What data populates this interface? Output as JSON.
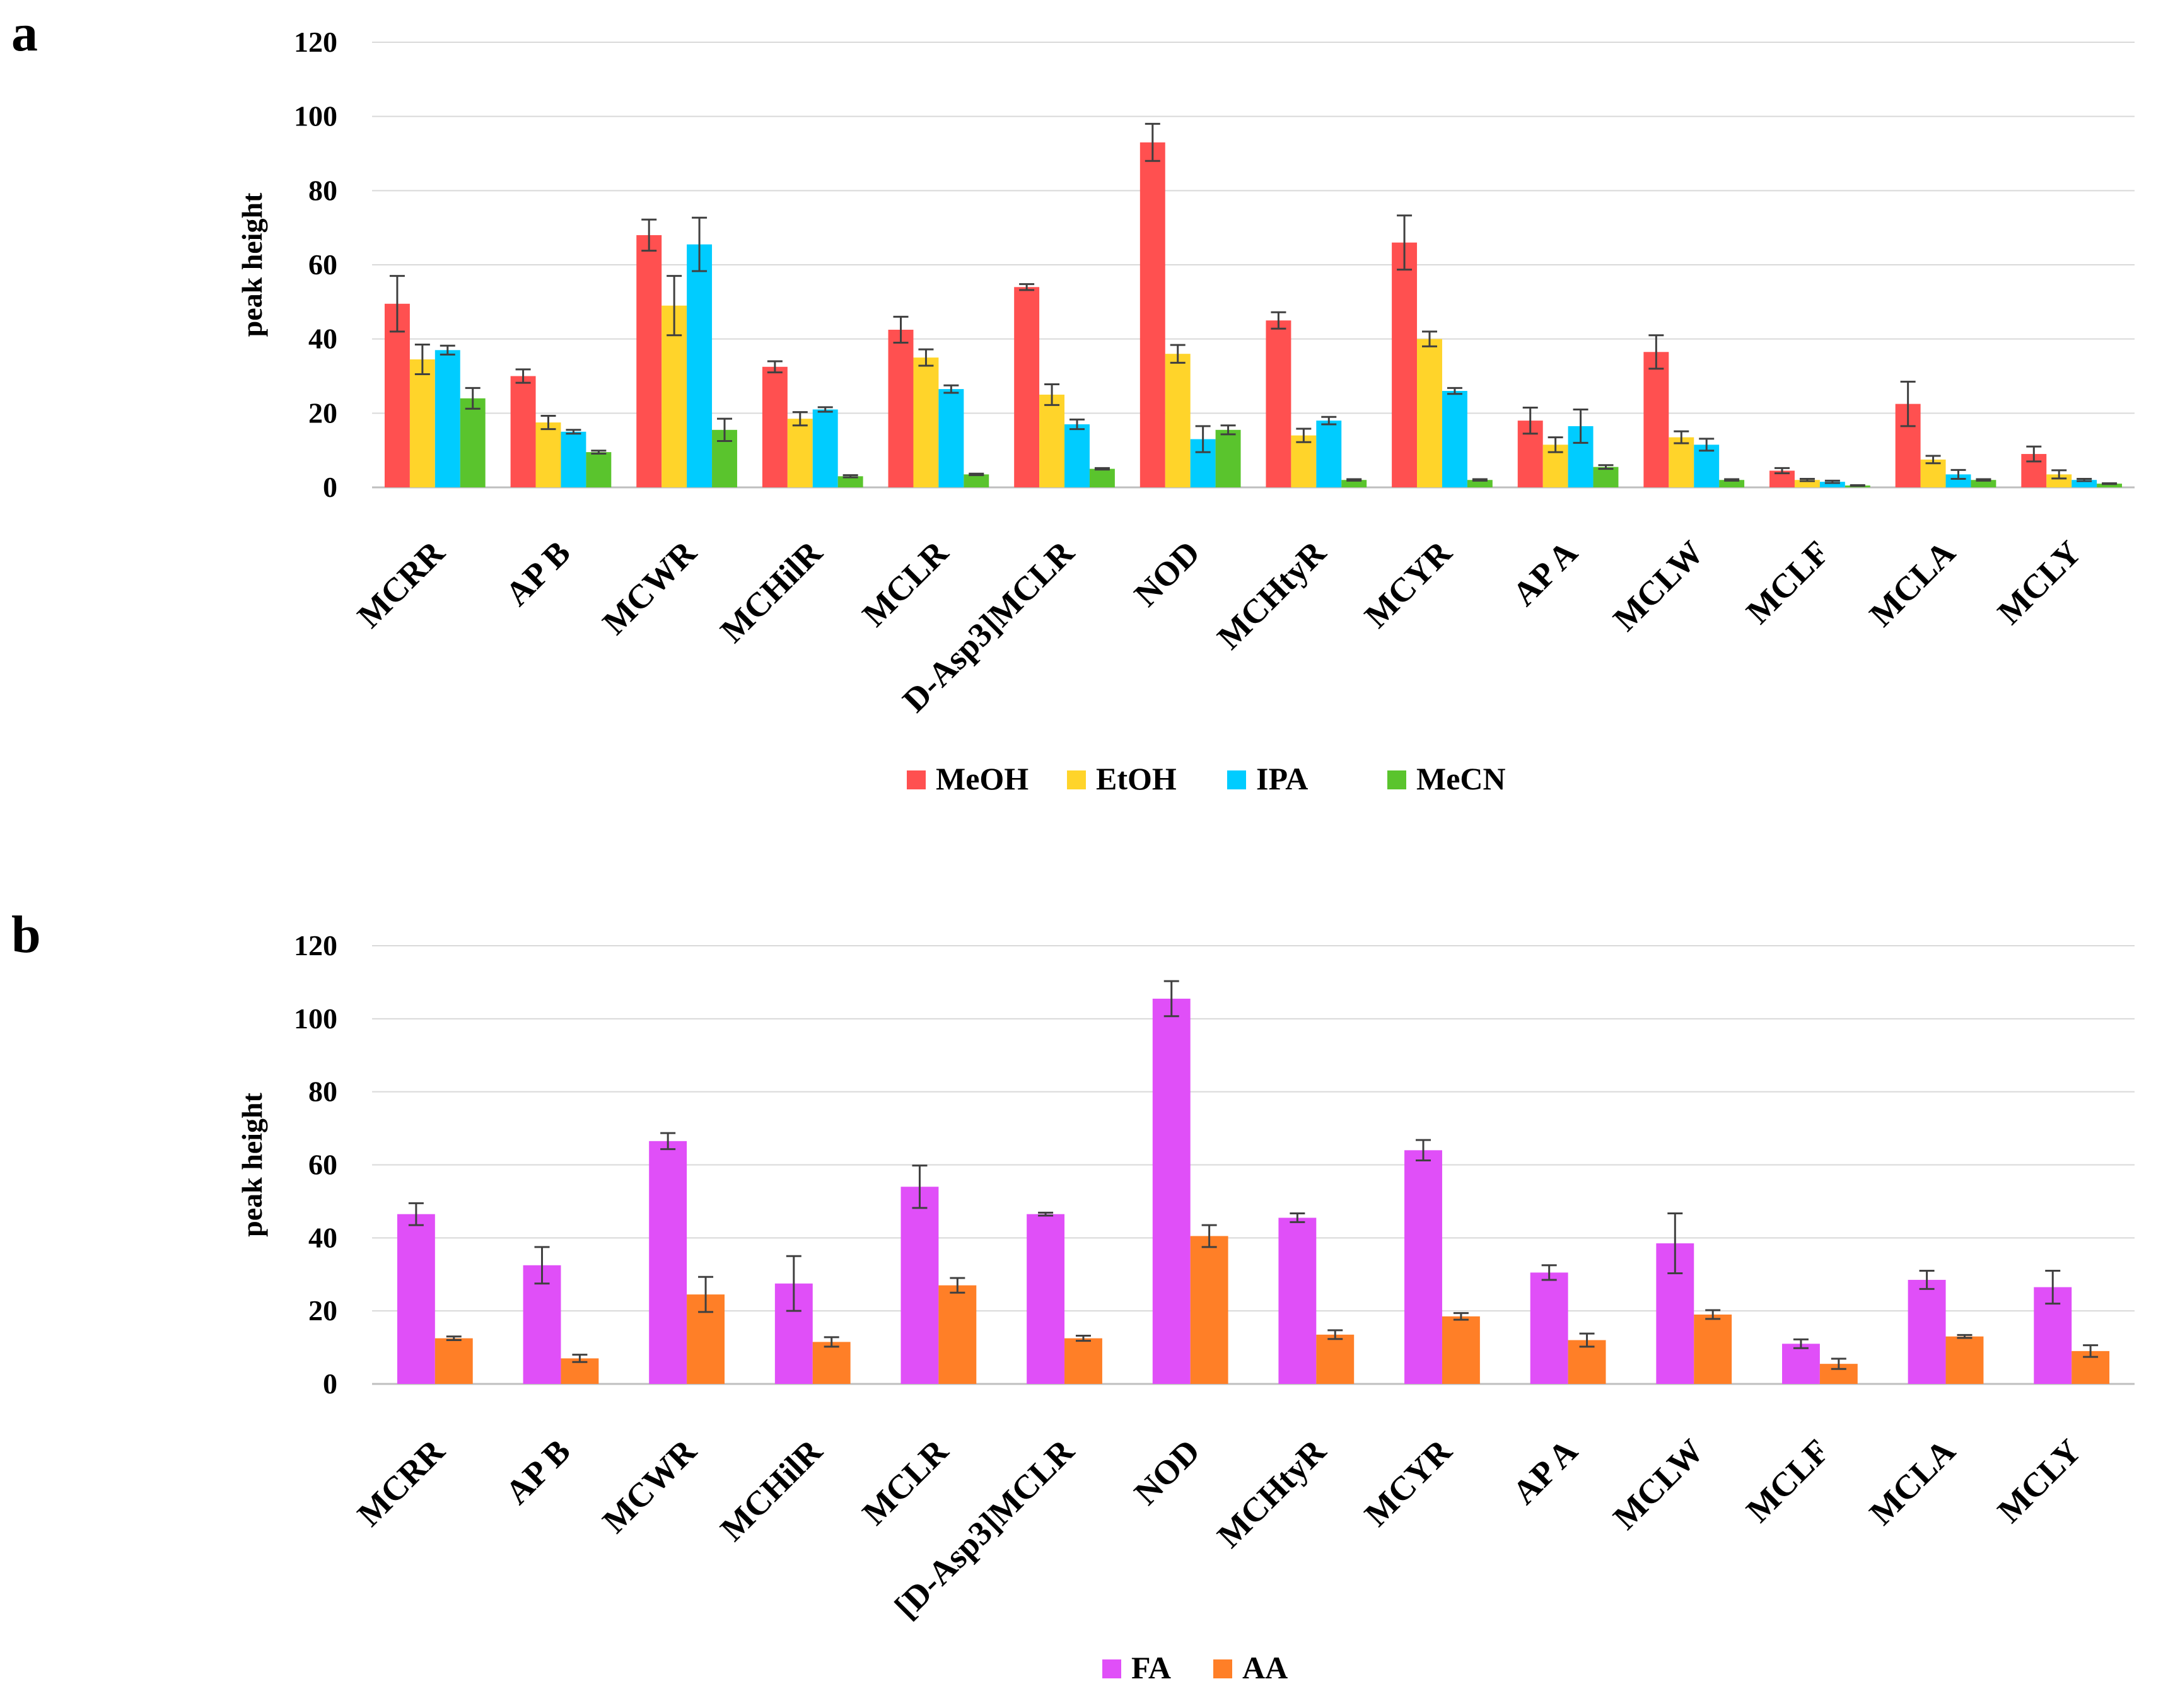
{
  "panels": [
    {
      "letter": "a"
    },
    {
      "letter": "b"
    }
  ],
  "chart_data": [
    {
      "type": "bar",
      "panel": "a",
      "ylabel": "peak height",
      "ylim": [
        0,
        120
      ],
      "yticks": [
        0,
        20,
        40,
        60,
        80,
        100,
        120
      ],
      "grid": true,
      "legend_position": "bottom",
      "error_bars": true,
      "categories": [
        "MCRR",
        "AP B",
        "MCWR",
        "MCHilR",
        "MCLR",
        "D-Asp3]MCLR",
        "NOD",
        "MCHtyR",
        "MCYR",
        "AP A",
        "MCLW",
        "MCLF",
        "MCLA",
        "MCLY"
      ],
      "series": [
        {
          "name": "MeOH",
          "color": "#FF5050",
          "values": [
            49.5,
            30,
            68,
            32.5,
            42.5,
            54,
            93,
            45,
            66,
            18,
            36.5,
            4.5,
            22.5,
            9
          ],
          "errors": [
            7.5,
            1.8,
            4.2,
            1.5,
            3.5,
            0.8,
            5,
            2.2,
            7.3,
            3.5,
            4.5,
            0.7,
            6,
            2
          ]
        },
        {
          "name": "EtOH",
          "color": "#FFD42A",
          "values": [
            34.5,
            17.5,
            49,
            18.5,
            35,
            25,
            36,
            14,
            40,
            11.5,
            13.5,
            2,
            7.5,
            3.5
          ],
          "errors": [
            4,
            1.8,
            8,
            1.8,
            2.2,
            2.8,
            2.4,
            1.8,
            2,
            2,
            1.6,
            0.3,
            1,
            1.1
          ]
        },
        {
          "name": "IPA",
          "color": "#00CCFF",
          "values": [
            37,
            15,
            65.5,
            21,
            26.5,
            17,
            13,
            18,
            26,
            16.5,
            11.5,
            1.5,
            3.5,
            2
          ],
          "errors": [
            1.2,
            0.5,
            7.2,
            0.6,
            1,
            1.3,
            3.5,
            1,
            0.8,
            4.5,
            1.6,
            0.3,
            1.2,
            0.3
          ]
        },
        {
          "name": "MeCN",
          "color": "#5AC42D",
          "values": [
            24,
            9.5,
            15.5,
            3,
            3.5,
            5,
            15.5,
            2,
            2,
            5.5,
            2,
            0.5,
            2,
            1
          ],
          "errors": [
            2.8,
            0.4,
            3,
            0.3,
            0.2,
            0.2,
            1.2,
            0.2,
            0.2,
            0.5,
            0.2,
            0.1,
            0.2,
            0.1
          ]
        }
      ]
    },
    {
      "type": "bar",
      "panel": "b",
      "ylabel": "peak height",
      "ylim": [
        0,
        120
      ],
      "yticks": [
        0,
        20,
        40,
        60,
        80,
        100,
        120
      ],
      "grid": true,
      "legend_position": "bottom",
      "error_bars": true,
      "categories": [
        "MCRR",
        "AP B",
        "MCWR",
        "MCHilR",
        "MCLR",
        "[D-Asp3]MCLR",
        "NOD",
        "MCHtyR",
        "MCYR",
        "AP A",
        "MCLW",
        "MCLF",
        "MCLA",
        "MCLY"
      ],
      "series": [
        {
          "name": "FA",
          "color": "#E04FF8",
          "values": [
            46.5,
            32.5,
            66.5,
            27.5,
            54,
            46.5,
            105.5,
            45.5,
            64,
            30.5,
            38.5,
            11,
            28.5,
            26.5
          ],
          "errors": [
            3,
            5,
            2.2,
            7.5,
            5.8,
            0.4,
            4.8,
            1.2,
            2.8,
            2,
            8.2,
            1.2,
            2.5,
            4.5
          ]
        },
        {
          "name": "AA",
          "color": "#FF7F27",
          "values": [
            12.5,
            7,
            24.5,
            11.5,
            27,
            12.5,
            40.5,
            13.5,
            18.5,
            12,
            19,
            5.5,
            13,
            9
          ],
          "errors": [
            0.5,
            1,
            4.8,
            1.3,
            2,
            0.7,
            3,
            1.2,
            0.9,
            1.8,
            1.2,
            1.4,
            0.4,
            1.6
          ]
        }
      ]
    }
  ]
}
